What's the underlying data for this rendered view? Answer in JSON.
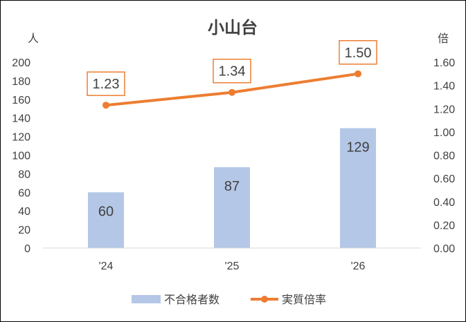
{
  "chart_data": {
    "type": "bar+line",
    "title": "小山台",
    "categories": [
      "'24",
      "'25",
      "'26"
    ],
    "y_left_label": "人",
    "y_right_label": "倍",
    "y_left_ticks": [
      "0",
      "20",
      "40",
      "60",
      "80",
      "100",
      "120",
      "140",
      "160",
      "180",
      "200"
    ],
    "y_right_ticks": [
      "0.00",
      "0.20",
      "0.40",
      "0.60",
      "0.80",
      "1.00",
      "1.20",
      "1.40",
      "1.60"
    ],
    "ylim_left": [
      0,
      200
    ],
    "ylim_right": [
      0,
      1.6
    ],
    "series": [
      {
        "name": "不合格者数",
        "type": "bar",
        "axis": "left",
        "color": "#b4c7e7",
        "values": [
          60,
          87,
          129
        ],
        "labels": [
          "60",
          "87",
          "129"
        ]
      },
      {
        "name": "実質倍率",
        "type": "line",
        "axis": "right",
        "color": "#ed7d31",
        "values": [
          1.23,
          1.34,
          1.5
        ],
        "labels": [
          "1.23",
          "1.34",
          "1.50"
        ]
      }
    ],
    "legend_position": "bottom",
    "grid": false
  }
}
